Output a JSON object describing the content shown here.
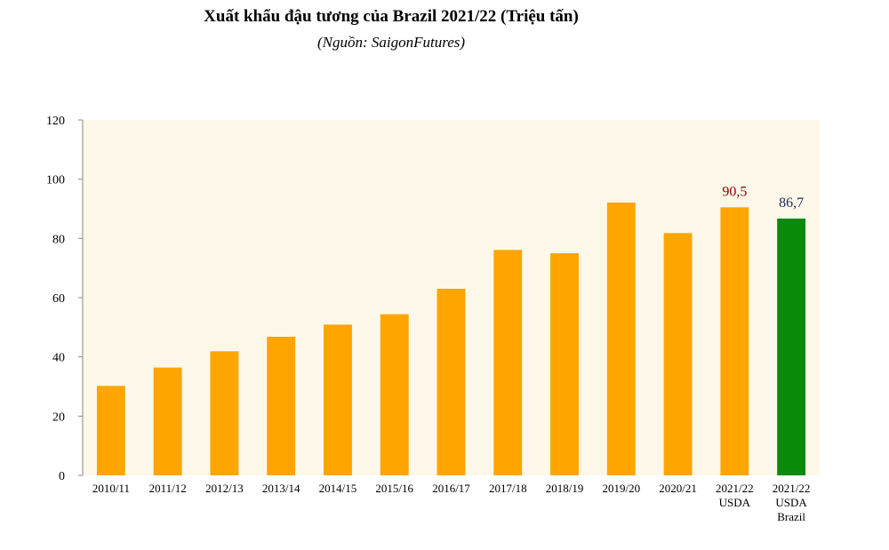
{
  "chart_data": {
    "type": "bar",
    "title": "Xuất khẩu đậu tương của Brazil 2021/22 (Triệu tấn)",
    "subtitle": "(Nguồn: SaigonFutures)",
    "xlabel": "",
    "ylabel": "",
    "ylim": [
      0,
      120
    ],
    "yticks": [
      0,
      20,
      40,
      60,
      80,
      100,
      120
    ],
    "categories": [
      [
        "2010/11"
      ],
      [
        "2011/12"
      ],
      [
        "2012/13"
      ],
      [
        "2013/14"
      ],
      [
        "2014/15"
      ],
      [
        "2015/16"
      ],
      [
        "2016/17"
      ],
      [
        "2017/18"
      ],
      [
        "2018/19"
      ],
      [
        "2019/20"
      ],
      [
        "2020/21"
      ],
      [
        "2021/22",
        "USDA"
      ],
      [
        "2021/22",
        "USDA",
        "Brazil"
      ]
    ],
    "values": [
      30.2,
      36.4,
      41.9,
      46.8,
      50.9,
      54.4,
      63.0,
      76.1,
      75.0,
      92.1,
      81.8,
      90.5,
      86.7
    ],
    "bar_colors": [
      "#ffa500",
      "#ffa500",
      "#ffa500",
      "#ffa500",
      "#ffa500",
      "#ffa500",
      "#ffa500",
      "#ffa500",
      "#ffa500",
      "#ffa500",
      "#ffa500",
      "#ffa500",
      "#0b8a0b"
    ],
    "data_labels": [
      {
        "index": 11,
        "text": "90,5",
        "color": "#8b0000"
      },
      {
        "index": 12,
        "text": "86,7",
        "color": "#1f2a5a"
      }
    ],
    "plot_background": "#fdf8e9",
    "grid": false,
    "legend": "none"
  }
}
